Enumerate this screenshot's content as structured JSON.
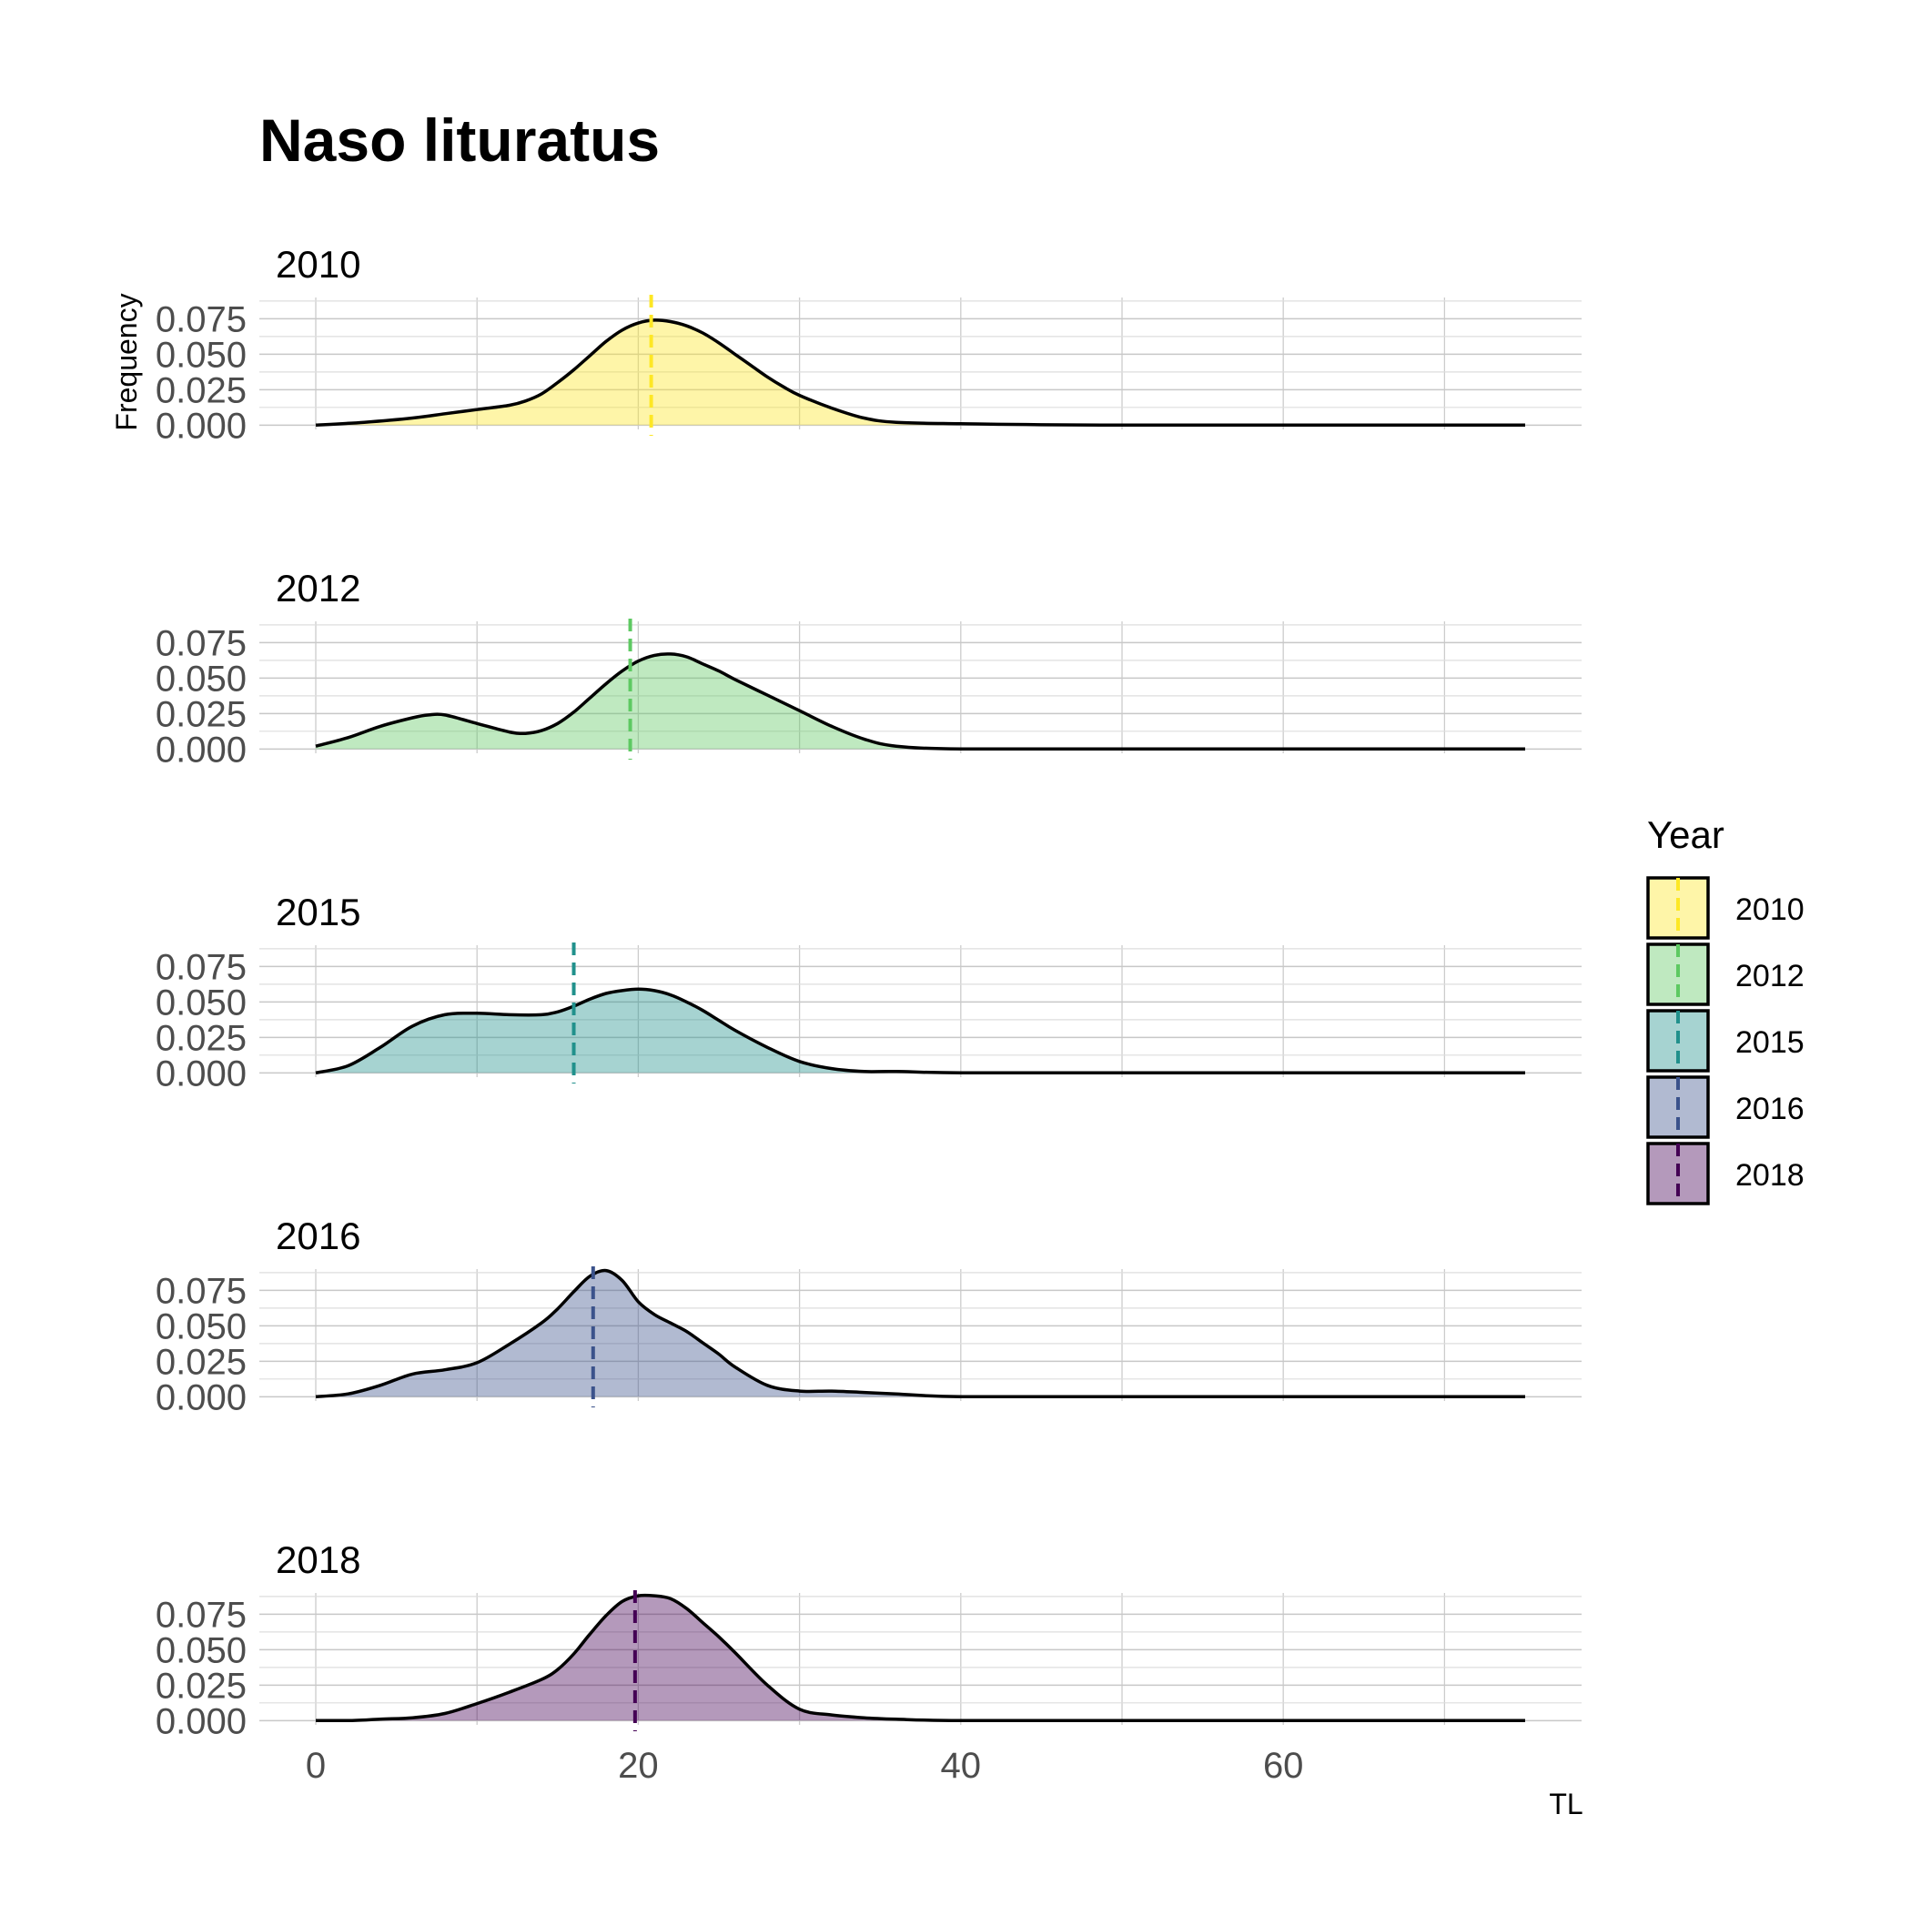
{
  "chart_data": {
    "type": "area",
    "title": "Naso lituratus",
    "xlabel": "TL",
    "ylabel": "Frequency",
    "xlim": [
      -3.5,
      78.5
    ],
    "x_ticks": [
      0,
      20,
      40,
      60
    ],
    "y_ticks": [
      0,
      0.025,
      0.05,
      0.075
    ],
    "y_tick_labels": [
      "0.000",
      "0.025",
      "0.050",
      "0.075"
    ],
    "ylim": [
      -0.003,
      0.09
    ],
    "grid": true,
    "legend": {
      "title": "Year",
      "position": "right"
    },
    "panels": [
      {
        "label": "2010",
        "color": "#FDE725",
        "mean": 20.8,
        "x": [
          0,
          3,
          6,
          8,
          10,
          12,
          13,
          14,
          15,
          16,
          17,
          18,
          19,
          20,
          21,
          22,
          23,
          24,
          25,
          26,
          27,
          28,
          29,
          30,
          32,
          34,
          36,
          40,
          50,
          75
        ],
        "y": [
          0.0,
          0.002,
          0.005,
          0.008,
          0.011,
          0.014,
          0.017,
          0.022,
          0.03,
          0.039,
          0.049,
          0.059,
          0.067,
          0.072,
          0.074,
          0.073,
          0.07,
          0.065,
          0.058,
          0.05,
          0.042,
          0.034,
          0.027,
          0.021,
          0.012,
          0.005,
          0.002,
          0.001,
          0.0,
          0.0
        ]
      },
      {
        "label": "2012",
        "color": "#5EC962",
        "mean": 19.5,
        "x": [
          0,
          2,
          4,
          6,
          7,
          8,
          10,
          12,
          13,
          14,
          15,
          16,
          17,
          18,
          19,
          20,
          21,
          22,
          23,
          24,
          25,
          26,
          28,
          30,
          32,
          34,
          36,
          40,
          50,
          75
        ],
        "y": [
          0.002,
          0.008,
          0.016,
          0.022,
          0.024,
          0.024,
          0.018,
          0.012,
          0.011,
          0.013,
          0.018,
          0.026,
          0.036,
          0.046,
          0.055,
          0.062,
          0.066,
          0.067,
          0.065,
          0.06,
          0.055,
          0.049,
          0.038,
          0.027,
          0.016,
          0.007,
          0.002,
          0.0,
          0.0,
          0.0
        ]
      },
      {
        "label": "2015",
        "color": "#21918C",
        "mean": 16.0,
        "x": [
          0,
          2,
          4,
          6,
          8,
          10,
          12,
          14,
          15,
          16,
          17,
          18,
          19,
          20,
          21,
          22,
          23,
          24,
          25,
          26,
          28,
          30,
          32,
          34,
          36,
          40,
          50,
          75
        ],
        "y": [
          0.0,
          0.005,
          0.018,
          0.033,
          0.041,
          0.042,
          0.041,
          0.041,
          0.043,
          0.047,
          0.052,
          0.056,
          0.058,
          0.059,
          0.058,
          0.055,
          0.05,
          0.044,
          0.037,
          0.03,
          0.018,
          0.008,
          0.003,
          0.001,
          0.001,
          0.0,
          0.0,
          0.0
        ]
      },
      {
        "label": "2016",
        "color": "#3B528B",
        "mean": 17.2,
        "x": [
          0,
          2,
          4,
          6,
          8,
          10,
          12,
          14,
          15,
          16,
          17,
          18,
          19,
          20,
          21,
          22,
          23,
          24,
          25,
          26,
          28,
          30,
          32,
          34,
          36,
          40,
          50,
          75
        ],
        "y": [
          0.0,
          0.002,
          0.008,
          0.016,
          0.019,
          0.024,
          0.037,
          0.052,
          0.062,
          0.074,
          0.085,
          0.089,
          0.082,
          0.067,
          0.058,
          0.052,
          0.046,
          0.038,
          0.03,
          0.021,
          0.008,
          0.004,
          0.004,
          0.003,
          0.002,
          0.0,
          0.0,
          0.0
        ]
      },
      {
        "label": "2018",
        "color": "#440154",
        "mean": 19.8,
        "x": [
          0,
          2,
          4,
          6,
          8,
          10,
          12,
          14,
          15,
          16,
          17,
          18,
          19,
          20,
          21,
          22,
          23,
          24,
          25,
          26,
          28,
          30,
          32,
          34,
          36,
          40,
          50,
          75
        ],
        "y": [
          0.0,
          0.0,
          0.001,
          0.002,
          0.005,
          0.012,
          0.02,
          0.029,
          0.036,
          0.047,
          0.061,
          0.074,
          0.084,
          0.088,
          0.088,
          0.086,
          0.079,
          0.069,
          0.059,
          0.048,
          0.025,
          0.008,
          0.004,
          0.002,
          0.001,
          0.0,
          0.0,
          0.0
        ]
      }
    ]
  }
}
